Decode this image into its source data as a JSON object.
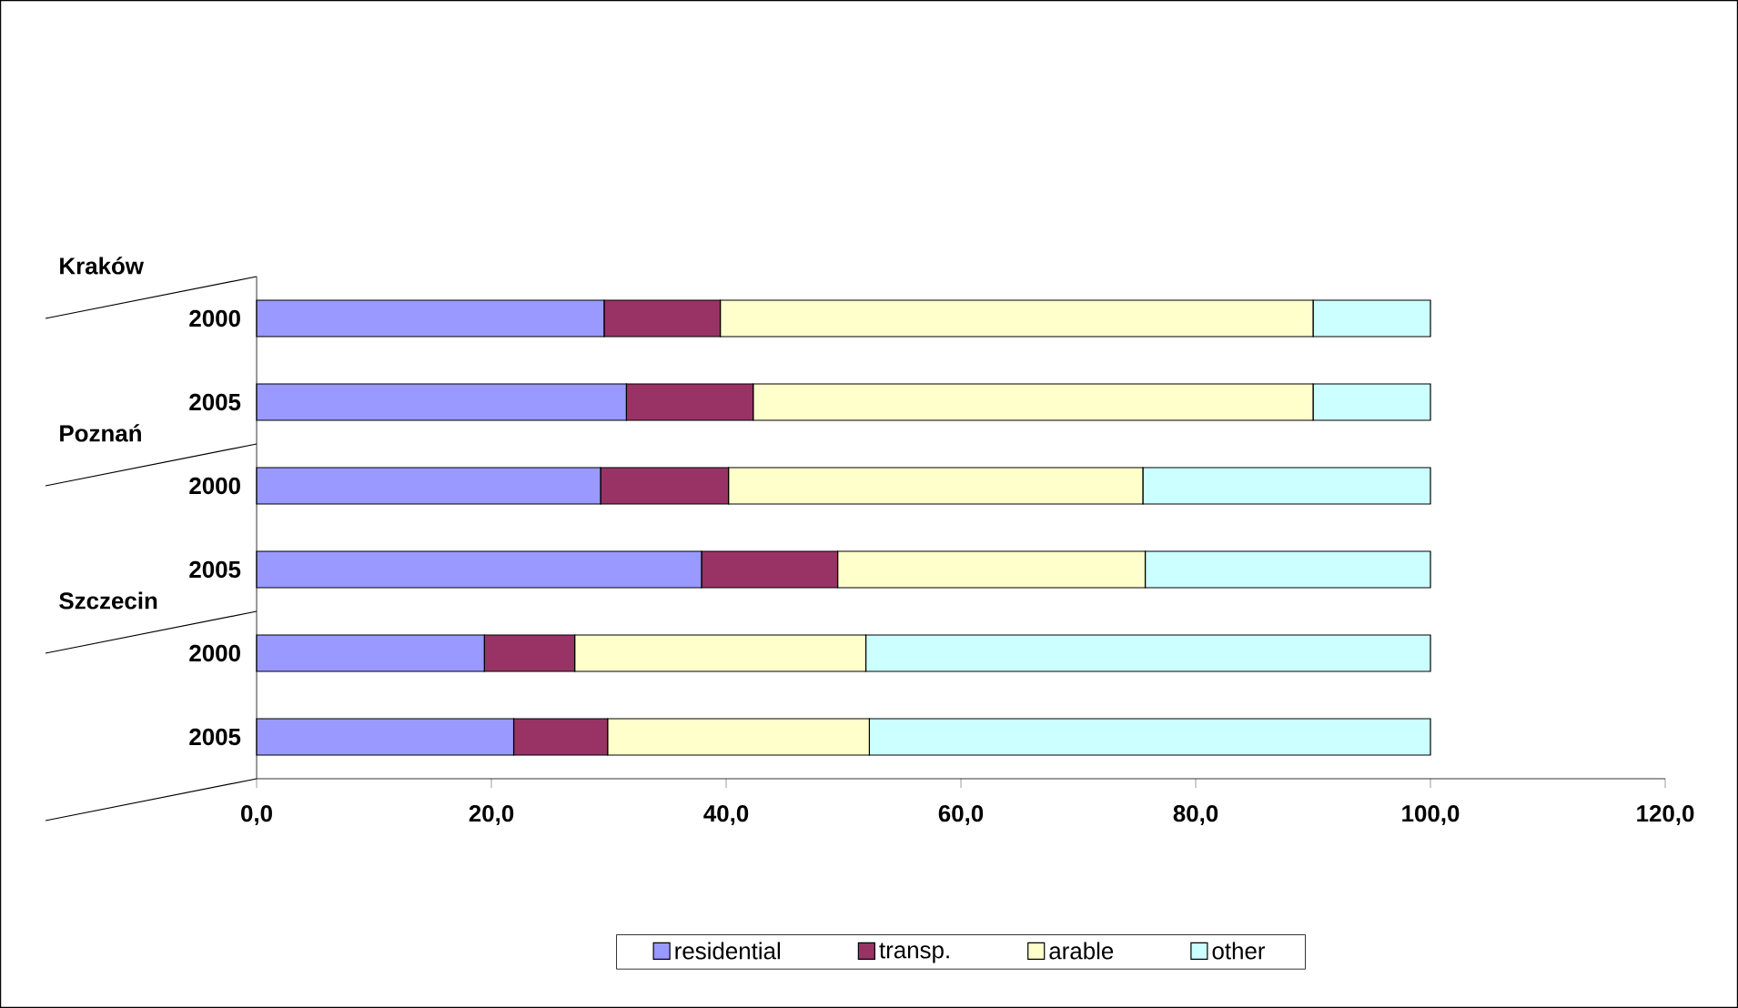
{
  "chart_data": {
    "type": "bar",
    "orientation": "horizontal",
    "stacked": true,
    "categories": [
      "2000",
      "2005",
      "2000",
      "2005",
      "2000",
      "2005"
    ],
    "series": [
      {
        "name": "residential",
        "color": "#9999ff",
        "values": [
          29.6,
          31.5,
          29.3,
          37.9,
          19.4,
          21.9
        ]
      },
      {
        "name": "transp.",
        "color": "#993366",
        "values": [
          9.9,
          10.8,
          10.9,
          11.6,
          7.7,
          8.0
        ]
      },
      {
        "name": "arable",
        "color": "#ffffcc",
        "values": [
          50.5,
          47.7,
          35.3,
          26.2,
          24.8,
          22.3
        ]
      },
      {
        "name": "other",
        "color": "#ccffff",
        "values": [
          10.0,
          10.0,
          24.5,
          24.3,
          48.1,
          47.8
        ]
      }
    ],
    "xlim": [
      0,
      120
    ],
    "xticks": [
      {
        "value": 0,
        "label": "0,0"
      },
      {
        "value": 20,
        "label": "20,0"
      },
      {
        "value": 40,
        "label": "40,0"
      },
      {
        "value": 60,
        "label": "60,0"
      },
      {
        "value": 80,
        "label": "80,0"
      },
      {
        "value": 100,
        "label": "100,0"
      },
      {
        "value": 120,
        "label": "120,0"
      }
    ],
    "legend": "bottom",
    "annotations": [
      "Kraków",
      "Poznań",
      "Szczecin"
    ]
  }
}
